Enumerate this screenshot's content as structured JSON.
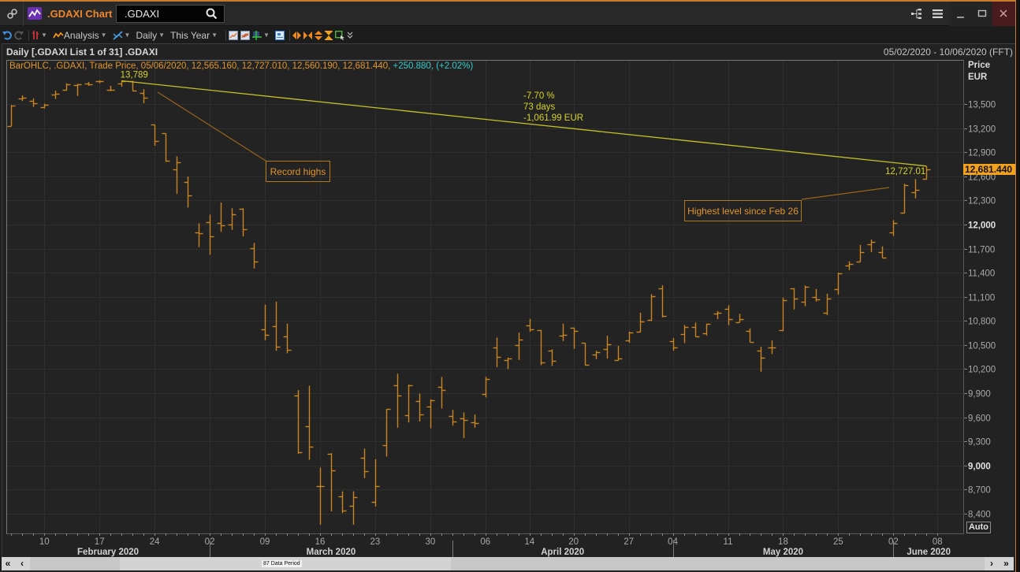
{
  "window": {
    "title": ".GDAXI Chart",
    "search_value": ".GDAXI",
    "icons": [
      "link-icon",
      "chart-app-icon",
      "search-icon",
      "tree-view-icon",
      "menu-icon",
      "minimize-icon",
      "maximize-icon",
      "close-icon"
    ]
  },
  "toolbar": {
    "analysis_label": "Analysis",
    "interval_label": "Daily",
    "range_label": "This Year",
    "icons": [
      "undo-icon",
      "redo-icon",
      "chart-type-icon",
      "analysis-icon",
      "drawing-tools-icon",
      "line-chart-icon",
      "compare-chart-icon",
      "crosshair-icon",
      "legend-icon",
      "pan-horizontal-icon",
      "fit-horizontal-icon",
      "pan-vertical-icon",
      "fit-vertical-icon",
      "zoom-box-icon",
      "more-icon"
    ]
  },
  "chart_header": {
    "title": "Daily [.GDAXI List 1 of 31] .GDAXI",
    "date_range": "05/02/2020 - 10/06/2020 (FFT)"
  },
  "legend": {
    "series_text": "BarOHLC, .GDAXI, Trade Price, 05/06/2020, 12,565.160, 12,727.010, 12,560.190, 12,681.440, ",
    "change_text": "+250.880, (+2.02%)"
  },
  "y_axis": {
    "title": "Price",
    "unit": "EUR",
    "auto_label": "Auto"
  },
  "scrollbar": {
    "first_label": "«",
    "prev_label": "‹",
    "next_label": "›",
    "last_label": "»",
    "period_label": "87 Data Period"
  },
  "colors": {
    "accent": "#f0882a",
    "bars": "#c98620",
    "trendline": "#c7c128",
    "change_positive": "#34cccc",
    "last_price_tag": "#f2a11e",
    "close_button": "#4a1b1d"
  },
  "chart_data": {
    "type": "bar",
    "style": "ohlc",
    "title": "Daily [.GDAXI List 1 of 31] .GDAXI",
    "instrument": ".GDAXI",
    "xlabel": "",
    "ylabel": "Price EUR",
    "ylim": [
      8250,
      13850
    ],
    "grid": true,
    "legend_position": "top-left",
    "x": [
      "05/02/2020",
      "06/02/2020",
      "07/02/2020",
      "10/02/2020",
      "11/02/2020",
      "12/02/2020",
      "13/02/2020",
      "14/02/2020",
      "17/02/2020",
      "18/02/2020",
      "19/02/2020",
      "20/02/2020",
      "21/02/2020",
      "24/02/2020",
      "25/02/2020",
      "26/02/2020",
      "27/02/2020",
      "28/02/2020",
      "02/03/2020",
      "03/03/2020",
      "04/03/2020",
      "05/03/2020",
      "06/03/2020",
      "09/03/2020",
      "10/03/2020",
      "11/03/2020",
      "12/03/2020",
      "13/03/2020",
      "16/03/2020",
      "17/03/2020",
      "18/03/2020",
      "19/03/2020",
      "20/03/2020",
      "23/03/2020",
      "24/03/2020",
      "25/03/2020",
      "26/03/2020",
      "27/03/2020",
      "30/03/2020",
      "31/03/2020",
      "01/04/2020",
      "02/04/2020",
      "03/04/2020",
      "06/04/2020",
      "07/04/2020",
      "08/04/2020",
      "09/04/2020",
      "14/04/2020",
      "15/04/2020",
      "16/04/2020",
      "17/04/2020",
      "20/04/2020",
      "21/04/2020",
      "22/04/2020",
      "23/04/2020",
      "24/04/2020",
      "27/04/2020",
      "28/04/2020",
      "29/04/2020",
      "30/04/2020",
      "04/05/2020",
      "05/05/2020",
      "06/05/2020",
      "07/05/2020",
      "08/05/2020",
      "11/05/2020",
      "12/05/2020",
      "13/05/2020",
      "14/05/2020",
      "15/05/2020",
      "18/05/2020",
      "19/05/2020",
      "20/05/2020",
      "21/05/2020",
      "22/05/2020",
      "25/05/2020",
      "26/05/2020",
      "27/05/2020",
      "28/05/2020",
      "29/05/2020",
      "02/06/2020",
      "03/06/2020",
      "04/06/2020",
      "05/06/2020"
    ],
    "series": [
      {
        "name": ".GDAXI Trade Price",
        "open": [
          13225,
          13569,
          13536,
          13464,
          13618,
          13674,
          13738,
          13755,
          13781,
          13674,
          13758,
          13782,
          13634,
          13242,
          13134,
          12685,
          12528,
          11900,
          12031,
          12015,
          11996,
          12195,
          11701,
          10690,
          10733,
          10605,
          9866,
          9486,
          8738,
          9146,
          8620,
          8498,
          9091,
          8548,
          9248,
          9994,
          9627,
          9803,
          9732,
          9980,
          9620,
          9591,
          9542,
          9895,
          10471,
          10308,
          10494,
          10739,
          10687,
          10426,
          10612,
          10710,
          10524,
          10379,
          10446,
          10308,
          10553,
          10664,
          10814,
          11204,
          10549,
          10632,
          10720,
          10647,
          10887,
          10952,
          10782,
          10671,
          10426,
          10474,
          10684,
          11207,
          11034,
          11093,
          10902,
          11197,
          11491,
          11534,
          11753,
          11655,
          11900,
          12146,
          12398,
          12565.16
        ],
        "high": [
          13487,
          13608,
          13569,
          13503,
          13667,
          13758,
          13752,
          13774,
          13795,
          13726,
          13790,
          13788,
          13684,
          13242,
          13134,
          12849,
          12597,
          12015,
          12123,
          12273,
          12202,
          12202,
          11770,
          11001,
          11040,
          10765,
          9938,
          9994,
          8973,
          9153,
          8679,
          8679,
          9209,
          9078,
          9702,
          10142,
          10007,
          9895,
          9823,
          10102,
          9692,
          9660,
          9634,
          10102,
          10592,
          10343,
          10654,
          10824,
          10687,
          10446,
          10765,
          10716,
          10526,
          10428,
          10615,
          10490,
          10667,
          10902,
          11132,
          11243,
          10586,
          10749,
          10778,
          10765,
          10922,
          10995,
          10887,
          10706,
          10477,
          10556,
          11089,
          11207,
          11240,
          11197,
          11138,
          11400,
          11541,
          11746,
          11812,
          11727,
          12054,
          12506,
          12565,
          12727.01
        ],
        "low": [
          13225,
          13536,
          13464,
          13444,
          13562,
          13667,
          13600,
          13726,
          13758,
          13660,
          13715,
          13660,
          13510,
          12980,
          12781,
          12380,
          12211,
          11720,
          11623,
          11908,
          11933,
          11851,
          11452,
          10559,
          10428,
          10396,
          9146,
          9071,
          8263,
          8429,
          8407,
          8263,
          8842,
          8489,
          9111,
          9470,
          9535,
          9548,
          9463,
          9709,
          9496,
          9342,
          9470,
          9847,
          10225,
          10199,
          10314,
          10664,
          10250,
          10239,
          10549,
          10452,
          10245,
          10324,
          10330,
          10308,
          10526,
          10657,
          10798,
          10844,
          10428,
          10524,
          10602,
          10618,
          10821,
          10746,
          10782,
          10536,
          10167,
          10387,
          10674,
          10942,
          10984,
          11040,
          10870,
          11125,
          11432,
          11534,
          11655,
          11583,
          11857,
          12139,
          12325,
          12560.19
        ],
        "close": [
          13478,
          13575,
          13514,
          13494,
          13627,
          13749,
          13745,
          13744,
          13783,
          13681,
          13789,
          13664,
          13579,
          13035,
          12790,
          12774,
          12367,
          11890,
          11857,
          11985,
          12127,
          11944,
          11541,
          10625,
          10475,
          10439,
          9161,
          9232,
          8742,
          8939,
          8441,
          8610,
          8929,
          8742,
          9701,
          9874,
          10000,
          9633,
          9815,
          9936,
          9544,
          9571,
          9525,
          10075,
          10356,
          10332,
          10565,
          10697,
          10280,
          10301,
          10626,
          10676,
          10249,
          10415,
          10513,
          10336,
          10659,
          10795,
          11107,
          10861,
          10466,
          10729,
          10606,
          10759,
          10904,
          10824,
          10820,
          10542,
          10337,
          10465,
          11058,
          11075,
          11223,
          11066,
          11074,
          11391,
          11504,
          11657,
          11781,
          11586,
          12021,
          12487,
          12430.56,
          12681.44
        ]
      }
    ],
    "y_ticks": [
      {
        "value": 8400,
        "label": "8,400",
        "bold": false
      },
      {
        "value": 8700,
        "label": "8,700",
        "bold": false
      },
      {
        "value": 9000,
        "label": "9,000",
        "bold": true
      },
      {
        "value": 9300,
        "label": "9,300",
        "bold": false
      },
      {
        "value": 9600,
        "label": "9,600",
        "bold": false
      },
      {
        "value": 9900,
        "label": "9,900",
        "bold": false
      },
      {
        "value": 10200,
        "label": "10,200",
        "bold": false
      },
      {
        "value": 10500,
        "label": "10,500",
        "bold": false
      },
      {
        "value": 10800,
        "label": "10,800",
        "bold": false
      },
      {
        "value": 11100,
        "label": "11,100",
        "bold": false
      },
      {
        "value": 11400,
        "label": "11,400",
        "bold": false
      },
      {
        "value": 11700,
        "label": "11,700",
        "bold": false
      },
      {
        "value": 12000,
        "label": "12,000",
        "bold": true
      },
      {
        "value": 12300,
        "label": "12,300",
        "bold": false
      },
      {
        "value": 12600,
        "label": "12,600",
        "bold": false
      },
      {
        "value": 12900,
        "label": "12,900",
        "bold": false
      },
      {
        "value": 13200,
        "label": "13,200",
        "bold": false
      },
      {
        "value": 13500,
        "label": "13,500",
        "bold": false
      }
    ],
    "x_ticks": [
      {
        "index": 3,
        "label": "10"
      },
      {
        "index": 8,
        "label": "17"
      },
      {
        "index": 13,
        "label": "24"
      },
      {
        "index": 18,
        "label": "02"
      },
      {
        "index": 23,
        "label": "09"
      },
      {
        "index": 28,
        "label": "16"
      },
      {
        "index": 33,
        "label": "23"
      },
      {
        "index": 38,
        "label": "30"
      },
      {
        "index": 43,
        "label": "06"
      },
      {
        "index": 47,
        "label": "14"
      },
      {
        "index": 51,
        "label": "20"
      },
      {
        "index": 56,
        "label": "27"
      },
      {
        "index": 60,
        "label": "04"
      },
      {
        "index": 65,
        "label": "11"
      },
      {
        "index": 70,
        "label": "18"
      },
      {
        "index": 75,
        "label": "25"
      },
      {
        "index": 80,
        "label": "02"
      },
      {
        "index": 84,
        "label": "08"
      }
    ],
    "months": [
      {
        "label": "February 2020",
        "start_index": 0
      },
      {
        "label": "March 2020",
        "start_index": 18
      },
      {
        "label": "April 2020",
        "start_index": 40
      },
      {
        "label": "May 2020",
        "start_index": 60
      },
      {
        "label": "June 2020",
        "start_index": 80
      }
    ],
    "annotations": {
      "trendline": {
        "from_index": 10,
        "from_value": 13789,
        "to_index": 83,
        "to_value": 12727.01,
        "start_label": "13,789",
        "end_label": "12,727.01",
        "stats": [
          "-7.70 %",
          "73 days",
          "-1,061.99 EUR"
        ]
      },
      "callouts": [
        {
          "text": "Record highs"
        },
        {
          "text": "Highest level since Feb 26"
        }
      ],
      "last_price": {
        "value": 12681.44,
        "label": "12,681.440"
      }
    }
  }
}
